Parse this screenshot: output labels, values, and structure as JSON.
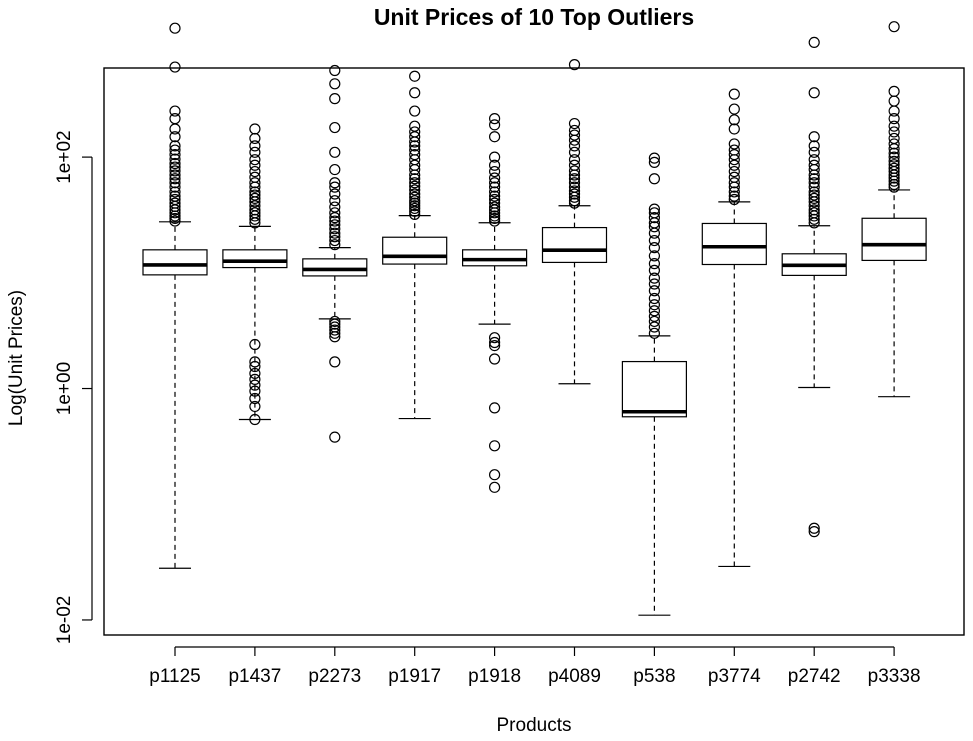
{
  "chart_data": {
    "type": "boxplot",
    "title": "Unit Prices of 10 Top Outliers",
    "xlabel": "Products",
    "ylabel": "Log(Unit Prices)",
    "y_scale": "log10",
    "y_ticks": [
      {
        "value": 0.01,
        "label": "1e-02"
      },
      {
        "value": 1,
        "label": "1e+00"
      },
      {
        "value": 100,
        "label": "1e+02"
      }
    ],
    "ylim_log10": [
      -2.13,
      2.77
    ],
    "grid": false,
    "legend": "none",
    "colors": {
      "box_fill": "#ffffff",
      "stroke": "#000000"
    },
    "categories": [
      "p1125",
      "p1437",
      "p2273",
      "p1917",
      "p1918",
      "p4089",
      "p538",
      "p3774",
      "p2742",
      "p3338"
    ],
    "boxes": [
      {
        "name": "p1125",
        "whisker_low": 0.028,
        "q1": 9.6,
        "median": 11.7,
        "q3": 15.8,
        "whisker_high": 27.6,
        "outliers": [
          28,
          29.5,
          31,
          33,
          35,
          37.5,
          40,
          43,
          46,
          50,
          55,
          60,
          65,
          70,
          76,
          82,
          88,
          96,
          105,
          115,
          125,
          150,
          175,
          215,
          250,
          600,
          1300,
          3450
        ]
      },
      {
        "name": "p1437",
        "whisker_low": 0.54,
        "q1": 11.1,
        "median": 12.6,
        "q3": 15.8,
        "whisker_high": 25.2,
        "outliers": [
          0.54,
          0.7,
          0.82,
          0.95,
          1.07,
          1.2,
          1.35,
          1.55,
          1.7,
          2.4,
          27,
          29,
          31,
          33,
          35,
          38,
          41,
          44,
          47,
          50,
          55,
          60,
          67,
          75,
          85,
          95,
          110,
          125,
          145,
          175
        ]
      },
      {
        "name": "p2273",
        "whisker_low": 4.0,
        "q1": 9.4,
        "median": 10.7,
        "q3": 13.2,
        "whisker_high": 16.5,
        "outliers": [
          0.38,
          1.7,
          2.8,
          3.0,
          3.2,
          3.4,
          3.6,
          3.8,
          17.5,
          19,
          20.5,
          22,
          24,
          26,
          28,
          30,
          33,
          37,
          42,
          48,
          55,
          60,
          78,
          110,
          180,
          320,
          430,
          560
        ]
      },
      {
        "name": "p1917",
        "whisker_low": 0.55,
        "q1": 11.9,
        "median": 13.9,
        "q3": 20.3,
        "whisker_high": 31.2,
        "outliers": [
          32,
          34,
          36,
          38,
          40,
          42,
          45,
          48,
          52,
          56,
          60,
          65,
          70,
          78,
          85,
          95,
          105,
          115,
          125,
          135,
          150,
          165,
          185,
          250,
          360,
          500,
          3150
        ]
      },
      {
        "name": "p1918",
        "whisker_low": 3.6,
        "q1": 11.5,
        "median": 13.0,
        "q3": 15.8,
        "whisker_high": 27.1,
        "outliers": [
          0.14,
          0.18,
          0.32,
          0.68,
          1.8,
          2.35,
          2.5,
          2.75,
          28,
          29.5,
          31,
          33,
          35,
          37,
          40,
          43,
          46,
          50,
          55,
          60,
          66,
          75,
          85,
          100,
          150,
          190,
          215
        ]
      },
      {
        "name": "p4089",
        "whisker_low": 1.1,
        "q1": 12.3,
        "median": 15.7,
        "q3": 24.6,
        "whisker_high": 38,
        "outliers": [
          40,
          42,
          45,
          48,
          51,
          55,
          60,
          65,
          70,
          76,
          85,
          95,
          110,
          125,
          140,
          155,
          170,
          195,
          630
        ]
      },
      {
        "name": "p538",
        "whisker_low": 0.011,
        "q1": 0.57,
        "median": 0.63,
        "q3": 1.71,
        "whisker_high": 2.85,
        "outliers": [
          3.0,
          3.4,
          3.8,
          4.2,
          4.7,
          5.3,
          6,
          7,
          8,
          9,
          10.5,
          12,
          14,
          16.5,
          19,
          22,
          25,
          27,
          30,
          33,
          35.5,
          65,
          90,
          98
        ]
      },
      {
        "name": "p3774",
        "whisker_low": 0.029,
        "q1": 11.8,
        "median": 16.8,
        "q3": 26.7,
        "whisker_high": 41,
        "outliers": [
          43,
          46,
          50,
          55,
          60,
          67,
          75,
          85,
          95,
          105,
          115,
          130,
          175,
          210,
          260,
          350,
          3800
        ]
      },
      {
        "name": "p2742",
        "whisker_low": 1.02,
        "q1": 9.5,
        "median": 11.6,
        "q3": 14.6,
        "whisker_high": 25.5,
        "outliers": [
          0.058,
          0.062,
          27,
          29,
          31,
          33,
          35,
          38,
          41,
          44,
          47,
          50,
          55,
          60,
          65,
          70,
          78,
          85,
          95,
          110,
          125,
          150,
          360,
          980
        ]
      },
      {
        "name": "p3338",
        "whisker_low": 0.85,
        "q1": 12.8,
        "median": 17.5,
        "q3": 29.6,
        "whisker_high": 52,
        "outliers": [
          55,
          58,
          62,
          66,
          70,
          75,
          80,
          86,
          92,
          100,
          108,
          118,
          130,
          145,
          165,
          185,
          215,
          250,
          305,
          370,
          1340
        ]
      }
    ]
  }
}
